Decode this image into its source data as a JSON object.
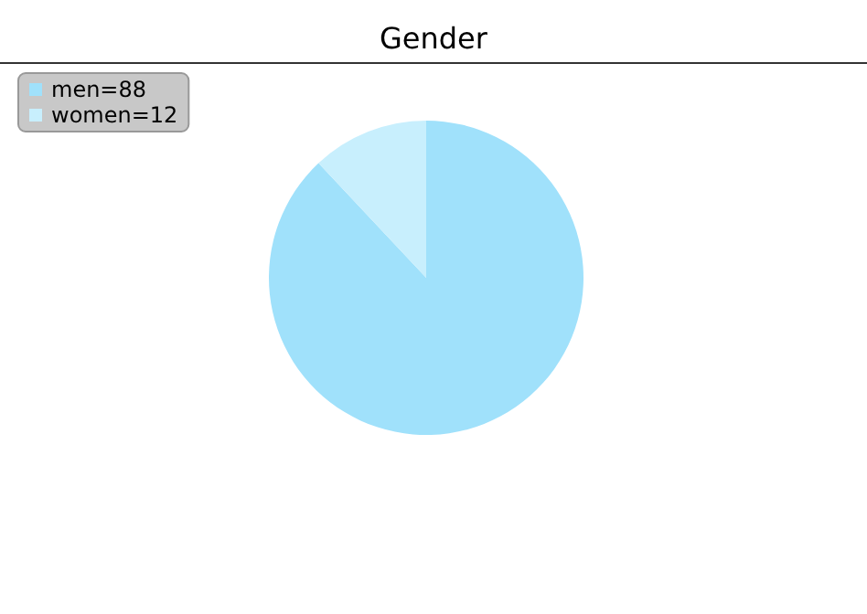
{
  "chart_data": {
    "type": "pie",
    "title": "Gender",
    "categories": [
      "men=88",
      "women=12"
    ],
    "values": [
      88,
      12
    ],
    "colors": [
      "#a0e1fb",
      "#c8effd"
    ],
    "legend": "top left"
  }
}
